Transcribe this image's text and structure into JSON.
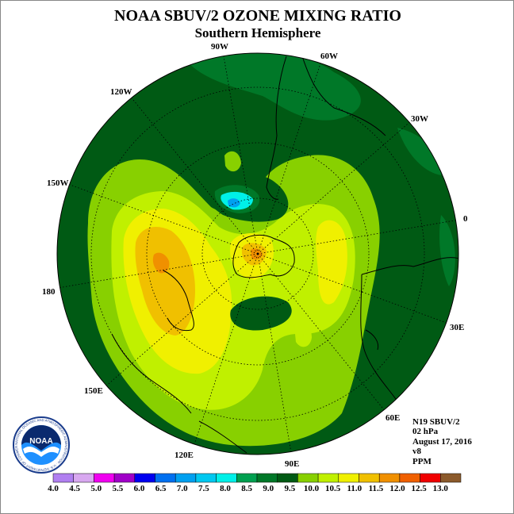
{
  "title": "NOAA SBUV/2 OZONE MIXING RATIO",
  "subtitle": "Southern Hemisphere",
  "longitude_labels": [
    {
      "id": "90w",
      "text": "90W"
    },
    {
      "id": "60w",
      "text": "60W"
    },
    {
      "id": "30w",
      "text": "30W"
    },
    {
      "id": "0",
      "text": "0"
    },
    {
      "id": "30e",
      "text": "30E"
    },
    {
      "id": "60e",
      "text": "60E"
    },
    {
      "id": "90e",
      "text": "90E"
    },
    {
      "id": "120e",
      "text": "120E"
    },
    {
      "id": "150e",
      "text": "150E"
    },
    {
      "id": "180",
      "text": "180"
    },
    {
      "id": "150w",
      "text": "150W"
    },
    {
      "id": "120w",
      "text": "120W"
    }
  ],
  "info": {
    "satellite": "N19 SBUV/2",
    "pressure": "02 hPa",
    "date": "August 17, 2016",
    "version": "v8",
    "units": "PPM"
  },
  "logo": {
    "text": "NOAA",
    "ring_text": "NATIONAL OCEANIC AND ATMOSPHERIC ADMINISTRATION · U.S. DEPARTMENT OF COMMERCE"
  },
  "colorbar": {
    "labels": [
      "4.0",
      "4.5",
      "5.0",
      "5.5",
      "6.0",
      "6.5",
      "7.0",
      "7.5",
      "8.0",
      "8.5",
      "9.0",
      "9.5",
      "10.0",
      "10.5",
      "11.0",
      "11.5",
      "12.0",
      "12.5",
      "13.0"
    ],
    "colors": [
      "#b07ff0",
      "#d8a8f0",
      "#f000f0",
      "#a000c8",
      "#0000f0",
      "#0070f0",
      "#00a0f0",
      "#00c8f0",
      "#00f0e8",
      "#00a050",
      "#007828",
      "#005a14",
      "#88d000",
      "#c0f000",
      "#f0f000",
      "#f0c000",
      "#f09000",
      "#f06000",
      "#f00000",
      "#8b5a2b"
    ]
  }
}
